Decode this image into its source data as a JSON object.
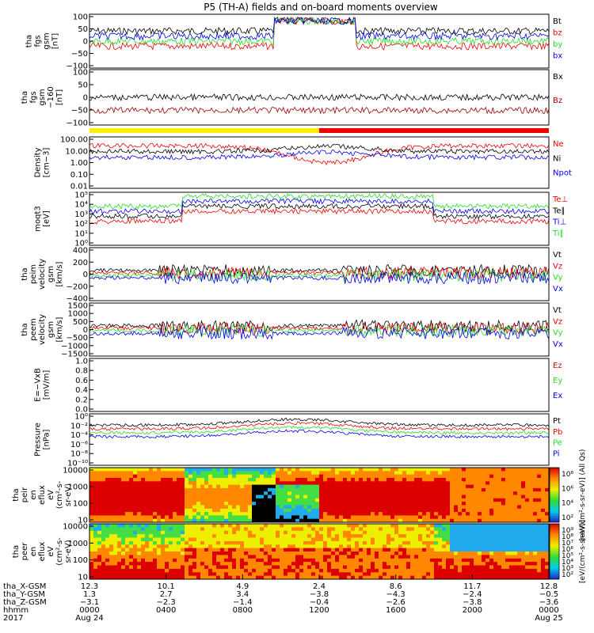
{
  "title": "P5 (TH-A) fields and on-board moments overview",
  "status_bar": {
    "colors": [
      "#ffee00",
      "#ee0000"
    ],
    "switch_hhmm": "1200"
  },
  "chart_data": [
    {
      "type": "line",
      "ylabel": [
        "tha",
        "fgs",
        "gsm",
        "[nT]"
      ],
      "ticks": [
        "100",
        "50",
        "0",
        "−50",
        "−100"
      ],
      "series": [
        {
          "name": "Bt",
          "color": "#000000"
        },
        {
          "name": "bz",
          "color": "#ee0000"
        },
        {
          "name": "by",
          "color": "#22dd22"
        },
        {
          "name": "bx",
          "color": "#0000ee"
        }
      ]
    },
    {
      "type": "line",
      "ylabel": [
        "tha",
        "fgs",
        "gsm",
        "−160",
        "[nT]"
      ],
      "ticks": [
        "100",
        "50",
        "0",
        "−50",
        "−100"
      ],
      "series": [
        {
          "name": "Bx",
          "color": "#000000"
        },
        {
          "name": "Bz",
          "color": "#990000"
        }
      ]
    },
    {
      "type": "line",
      "ylabel": [
        "Density",
        "[cm−3]"
      ],
      "ticks": [
        "100.00",
        "10.00",
        "1.00",
        "0.10",
        "0.01"
      ],
      "series": [
        {
          "name": "Ne",
          "color": "#ee0000"
        },
        {
          "name": "Ni",
          "color": "#000000"
        },
        {
          "name": "Npot",
          "color": "#0000ee"
        }
      ]
    },
    {
      "type": "line",
      "ylabel": [
        "moqt3",
        "[eV]"
      ],
      "ticks": [
        "10⁵",
        "10⁴",
        "10³",
        "10²",
        "10¹",
        "10⁰"
      ],
      "series": [
        {
          "name": "Te⊥",
          "color": "#ee0000"
        },
        {
          "name": "Te∥",
          "color": "#000000"
        },
        {
          "name": "Ti⊥",
          "color": "#0000ee"
        },
        {
          "name": "Ti∥",
          "color": "#22dd22"
        }
      ]
    },
    {
      "type": "line",
      "ylabel": [
        "tha",
        "peim",
        "velocity",
        "gsm",
        "[km/s]"
      ],
      "ticks": [
        "400",
        "200",
        "0",
        "−200",
        "−400"
      ],
      "series": [
        {
          "name": "Vt",
          "color": "#000000"
        },
        {
          "name": "Vz",
          "color": "#ee0000"
        },
        {
          "name": "Vy",
          "color": "#22dd22"
        },
        {
          "name": "Vx",
          "color": "#0000ee"
        }
      ]
    },
    {
      "type": "line",
      "ylabel": [
        "tha",
        "peem",
        "velocity",
        "gsm",
        "[km/s]"
      ],
      "ticks": [
        "1500",
        "1000",
        "500",
        "0",
        "−500",
        "−1000",
        "−1500"
      ],
      "series": [
        {
          "name": "Vt",
          "color": "#000000"
        },
        {
          "name": "Vz",
          "color": "#ee0000"
        },
        {
          "name": "Vy",
          "color": "#22dd22"
        },
        {
          "name": "Vx",
          "color": "#0000ee"
        }
      ]
    },
    {
      "type": "line",
      "ylabel": [
        "E=−VxB",
        "[mV/m]"
      ],
      "ticks": [
        "1.0",
        "0.8",
        "0.6",
        "0.4",
        "0.2",
        "0.0"
      ],
      "series": [
        {
          "name": "Ez",
          "color": "#ee0000"
        },
        {
          "name": "Ey",
          "color": "#22dd22"
        },
        {
          "name": "Ex",
          "color": "#0000ee"
        }
      ]
    },
    {
      "type": "line",
      "ylabel": [
        "Pressure",
        "[nPa]"
      ],
      "ticks": [
        "10⁰",
        "10⁻²",
        "10⁻⁴",
        "10⁻⁶",
        "10⁻⁸",
        "10⁻¹⁰"
      ],
      "series": [
        {
          "name": "Pt",
          "color": "#000000"
        },
        {
          "name": "Pb",
          "color": "#ee0000"
        },
        {
          "name": "Pe",
          "color": "#22dd22"
        },
        {
          "name": "Pi",
          "color": "#0000ee"
        }
      ]
    },
    {
      "type": "heatmap",
      "ylabel": [
        "tha",
        "peir",
        "en",
        "eflux",
        "eV",
        "(cm²-s-",
        "sr-eV)"
      ],
      "ticks": [
        "10000",
        "1000",
        "100",
        "10"
      ],
      "colorbar_ticks": [
        "10⁸",
        "10⁶",
        "10⁴",
        "10²"
      ],
      "colorbar_label": "[eV/(cm²-s-sr-eV)] (All Qs)"
    },
    {
      "type": "heatmap",
      "ylabel": [
        "tha",
        "peer",
        "en",
        "eflux",
        "eV",
        "(cm²-s-",
        "sr-eV)"
      ],
      "ticks": [
        "10000",
        "1000",
        "100",
        "10"
      ],
      "colorbar_ticks": [
        "10⁹",
        "10⁸",
        "10⁷",
        "10⁶",
        "10⁵",
        "10⁴",
        "10³",
        "10²"
      ],
      "colorbar_label": "[eV/(cm²-s-sr-eV)]"
    }
  ],
  "x_axis": {
    "row_labels": [
      "tha_X-GSM",
      "tha_Y-GSM",
      "tha_Z-GSM",
      "hhmm",
      "2017"
    ],
    "ticks": [
      {
        "x": "12.3",
        "y": "1.3",
        "z": "−3.1",
        "hhmm": "0000",
        "date": "Aug 24"
      },
      {
        "x": "10.1",
        "y": "2.7",
        "z": "−2.3",
        "hhmm": "0400",
        "date": ""
      },
      {
        "x": "4.9",
        "y": "3.4",
        "z": "−1.4",
        "hhmm": "0800",
        "date": ""
      },
      {
        "x": "2.4",
        "y": "−3.8",
        "z": "−0.4",
        "hhmm": "1200",
        "date": ""
      },
      {
        "x": "8.6",
        "y": "−4.3",
        "z": "−2.6",
        "hhmm": "1600",
        "date": ""
      },
      {
        "x": "11.7",
        "y": "−2.4",
        "z": "−3.8",
        "hhmm": "2000",
        "date": ""
      },
      {
        "x": "12.8",
        "y": "−0.5",
        "z": "−3.6",
        "hhmm": "0000",
        "date": "Aug 25"
      }
    ]
  }
}
